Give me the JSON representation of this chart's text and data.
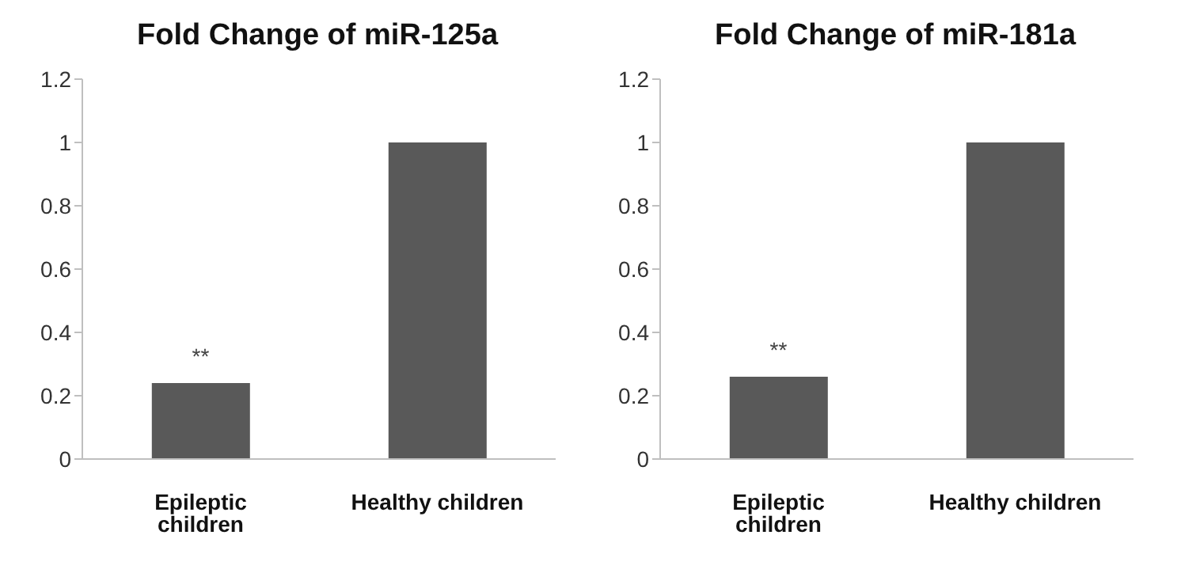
{
  "chart_data": [
    {
      "type": "bar",
      "title": "Fold Change of miR-125a",
      "categories": [
        "Epileptic children",
        "Healthy children"
      ],
      "values": [
        0.24,
        1
      ],
      "color": "#595959",
      "ylim": [
        0,
        1.2
      ],
      "yticks": [
        0,
        0.2,
        0.4,
        0.6,
        0.8,
        1,
        1.2
      ],
      "grid": false,
      "legend": false,
      "annotations": [
        {
          "text": "**",
          "x": "Epileptic children",
          "y": 0.24
        }
      ]
    },
    {
      "type": "bar",
      "title": "Fold Change of miR-181a",
      "categories": [
        "Epileptic children",
        "Healthy children"
      ],
      "values": [
        0.26,
        1
      ],
      "color": "#595959",
      "ylim": [
        0,
        1.2
      ],
      "yticks": [
        0,
        0.2,
        0.4,
        0.6,
        0.8,
        1,
        1.2
      ],
      "grid": false,
      "legend": false,
      "annotations": [
        {
          "text": "**",
          "x": "Epileptic children",
          "y": 0.26
        }
      ]
    }
  ]
}
